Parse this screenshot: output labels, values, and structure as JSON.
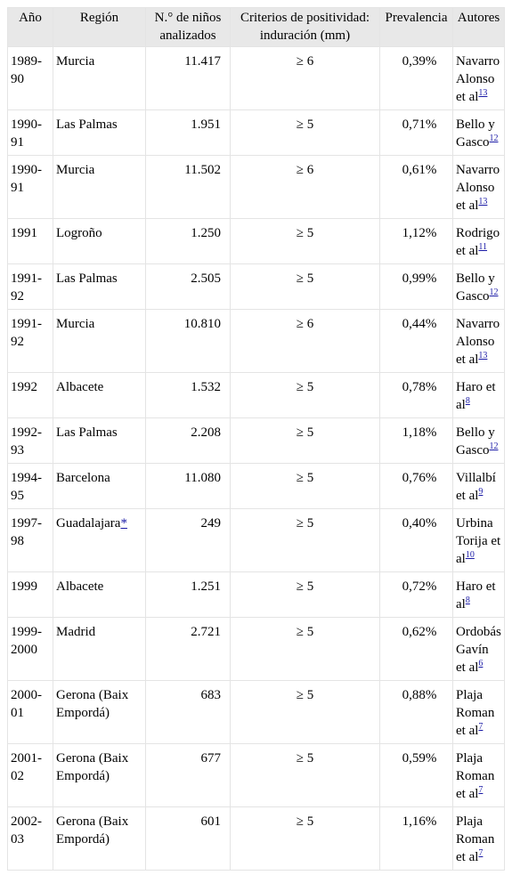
{
  "headers": [
    "Año",
    "Región",
    "N.° de niños analizados",
    "Criterios de positividad: induración (mm)",
    "Prevalencia",
    "Autores"
  ],
  "rows": [
    {
      "year": "1989-90",
      "region": "Murcia",
      "region_ref": "",
      "n": "11.417",
      "criterion": "≥ 6",
      "prevalence": "0,39%",
      "authors": "Navarro Alonso et al",
      "ref": "13"
    },
    {
      "year": "1990-91",
      "region": "Las Palmas",
      "region_ref": "",
      "n": "1.951",
      "criterion": "≥ 5",
      "prevalence": "0,71%",
      "authors": "Bello y Gasco",
      "ref": "12"
    },
    {
      "year": "1990-91",
      "region": "Murcia",
      "region_ref": "",
      "n": "11.502",
      "criterion": "≥ 6",
      "prevalence": "0,61%",
      "authors": "Navarro Alonso et al",
      "ref": "13"
    },
    {
      "year": "1991",
      "region": "Logroño",
      "region_ref": "",
      "n": "1.250",
      "criterion": "≥ 5",
      "prevalence": "1,12%",
      "authors": "Rodrigo et al",
      "ref": "11"
    },
    {
      "year": "1991-92",
      "region": "Las Palmas",
      "region_ref": "",
      "n": "2.505",
      "criterion": "≥ 5",
      "prevalence": "0,99%",
      "authors": "Bello y Gasco",
      "ref": "12"
    },
    {
      "year": "1991-92",
      "region": "Murcia",
      "region_ref": "",
      "n": "10.810",
      "criterion": "≥ 6",
      "prevalence": "0,44%",
      "authors": "Navarro Alonso et al",
      "ref": "13"
    },
    {
      "year": "1992",
      "region": "Albacete",
      "region_ref": "",
      "n": "1.532",
      "criterion": "≥ 5",
      "prevalence": "0,78%",
      "authors": "Haro et al",
      "ref": "8"
    },
    {
      "year": "1992-93",
      "region": "Las Palmas",
      "region_ref": "",
      "n": "2.208",
      "criterion": "≥ 5",
      "prevalence": "1,18%",
      "authors": "Bello y Gasco",
      "ref": "12"
    },
    {
      "year": "1994-95",
      "region": "Barcelona",
      "region_ref": "",
      "n": "11.080",
      "criterion": "≥ 5",
      "prevalence": "0,76%",
      "authors": "Villalbí et al",
      "ref": "9"
    },
    {
      "year": "1997-98",
      "region": "Guadalajara",
      "region_ref": "*",
      "n": "249",
      "criterion": "≥ 5",
      "prevalence": "0,40%",
      "authors": "Urbina Torija et al",
      "ref": "10"
    },
    {
      "year": "1999",
      "region": "Albacete",
      "region_ref": "",
      "n": "1.251",
      "criterion": "≥ 5",
      "prevalence": "0,72%",
      "authors": "Haro et al",
      "ref": "8"
    },
    {
      "year": "1999-2000",
      "region": "Madrid",
      "region_ref": "",
      "n": "2.721",
      "criterion": "≥ 5",
      "prevalence": "0,62%",
      "authors": "Ordobás Gavín et al",
      "ref": "6"
    },
    {
      "year": "2000-01",
      "region": "Gerona (Baix Empordá)",
      "region_ref": "",
      "n": "683",
      "criterion": "≥ 5",
      "prevalence": "0,88%",
      "authors": "Plaja Roman et al",
      "ref": "7"
    },
    {
      "year": "2001-02",
      "region": "Gerona (Baix Empordá)",
      "region_ref": "",
      "n": "677",
      "criterion": "≥ 5",
      "prevalence": "0,59%",
      "authors": "Plaja Roman et al",
      "ref": "7"
    },
    {
      "year": "2002-03",
      "region": "Gerona (Baix Empordá)",
      "region_ref": "",
      "n": "601",
      "criterion": "≥ 5",
      "prevalence": "1,16%",
      "authors": "Plaja Roman et al",
      "ref": "7"
    }
  ]
}
